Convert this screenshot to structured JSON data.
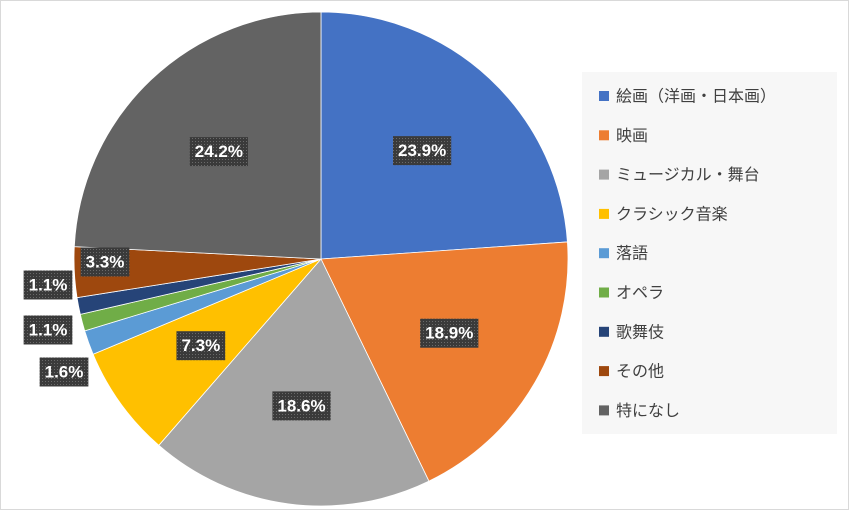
{
  "chart_data": {
    "type": "pie",
    "categories": [
      "絵画（洋画・日本画）",
      "映画",
      "ミュージカル・舞台",
      "クラシック音楽",
      "落語",
      "オペラ",
      "歌舞伎",
      "その他",
      "特になし"
    ],
    "values": [
      23.9,
      18.9,
      18.6,
      7.3,
      1.6,
      1.1,
      1.1,
      3.3,
      24.2
    ],
    "value_labels": [
      "23.9%",
      "18.9%",
      "18.6%",
      "7.3%",
      "1.6%",
      "1.1%",
      "1.1%",
      "3.3%",
      "24.2%"
    ],
    "colors": [
      "#4472c4",
      "#ed7d31",
      "#a5a5a5",
      "#ffc000",
      "#5b9bd5",
      "#70ad47",
      "#264478",
      "#9e480e",
      "#636363"
    ],
    "legend": "right"
  }
}
